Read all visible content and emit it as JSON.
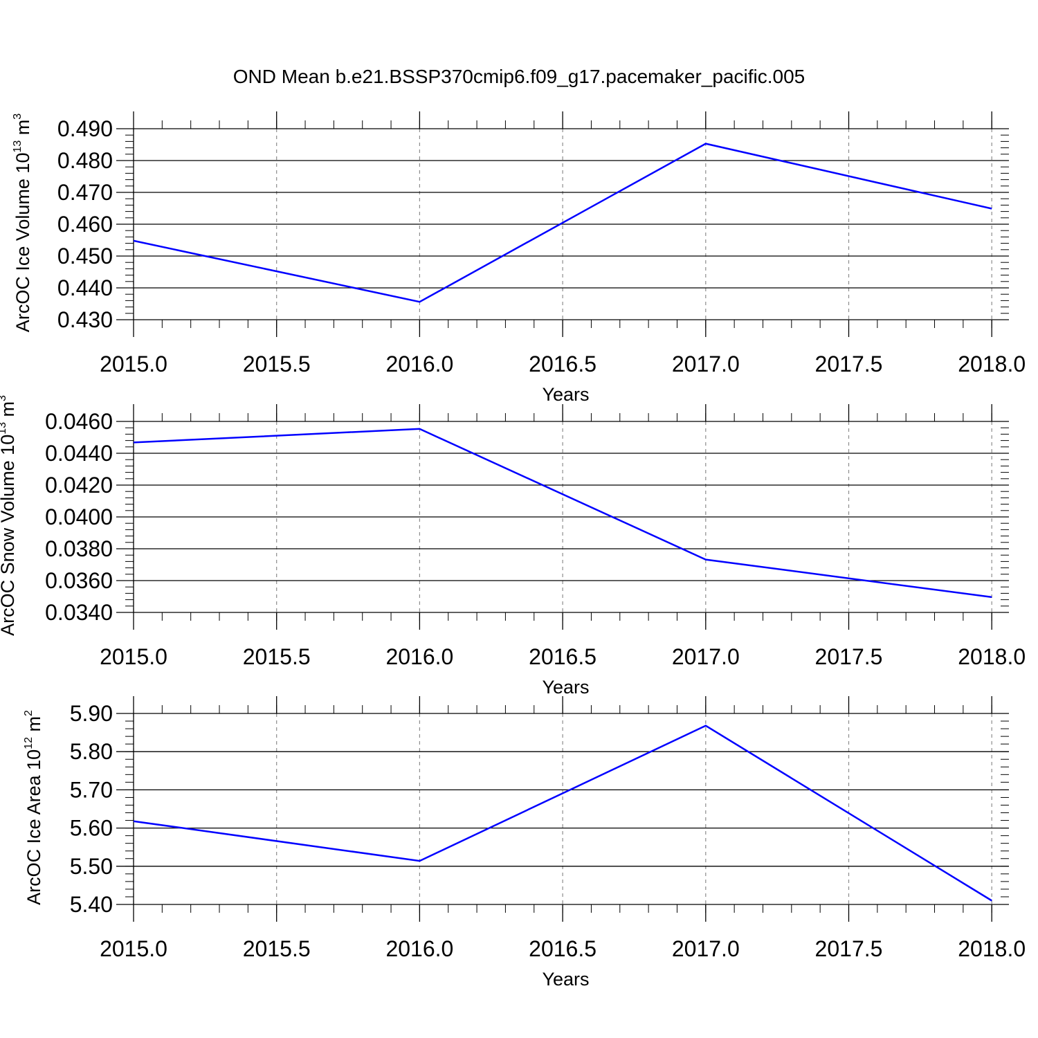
{
  "title": "OND Mean b.e21.BSSP370cmip6.f09_g17.pacemaker_pacific.005",
  "colors": {
    "line": "#0000ff",
    "axis": "#000000",
    "grid": "#8c8c8c"
  },
  "chart_data": [
    {
      "type": "line",
      "xlabel": "Years",
      "ylabel": {
        "prefix": "ArcOC Ice Volume 10",
        "exponent": "13",
        "unit": " m",
        "unit_exponent": "3"
      },
      "x": [
        2015,
        2016,
        2017,
        2018
      ],
      "series": [
        {
          "values": [
            0.4548,
            0.4356,
            0.4853,
            0.4649
          ]
        }
      ],
      "xlim": [
        2015,
        2018.06
      ],
      "ylim": [
        0.43,
        0.49
      ],
      "xticks": [
        "2015.0",
        "2015.5",
        "2016.0",
        "2016.5",
        "2017.0",
        "2017.5",
        "2018.0"
      ],
      "yticks": [
        "0.430",
        "0.440",
        "0.450",
        "0.460",
        "0.470",
        "0.480",
        "0.490"
      ],
      "grid": "x-dashed"
    },
    {
      "type": "line",
      "xlabel": "Years",
      "ylabel": {
        "prefix": "ArcOC Snow Volume 10",
        "exponent": "13",
        "unit": " m",
        "unit_exponent": "3"
      },
      "x": [
        2015,
        2016,
        2017,
        2018
      ],
      "series": [
        {
          "values": [
            0.04468,
            0.04553,
            0.03732,
            0.03496
          ]
        }
      ],
      "xlim": [
        2015,
        2018.06
      ],
      "ylim": [
        0.034,
        0.046
      ],
      "xticks": [
        "2015.0",
        "2015.5",
        "2016.0",
        "2016.5",
        "2017.0",
        "2017.5",
        "2018.0"
      ],
      "yticks": [
        "0.0340",
        "0.0360",
        "0.0380",
        "0.0400",
        "0.0420",
        "0.0440",
        "0.0460"
      ],
      "grid": "x-dashed"
    },
    {
      "type": "line",
      "xlabel": "Years",
      "ylabel": {
        "prefix": "ArcOC Ice Area 10",
        "exponent": "12",
        "unit": " m",
        "unit_exponent": "2"
      },
      "x": [
        2015,
        2016,
        2017,
        2018
      ],
      "series": [
        {
          "values": [
            5.618,
            5.514,
            5.868,
            5.41
          ]
        }
      ],
      "xlim": [
        2015,
        2018.06
      ],
      "ylim": [
        5.4,
        5.9
      ],
      "xticks": [
        "2015.0",
        "2015.5",
        "2016.0",
        "2016.5",
        "2017.0",
        "2017.5",
        "2018.0"
      ],
      "yticks": [
        "5.40",
        "5.50",
        "5.60",
        "5.70",
        "5.80",
        "5.90"
      ],
      "grid": "x-dashed"
    }
  ]
}
